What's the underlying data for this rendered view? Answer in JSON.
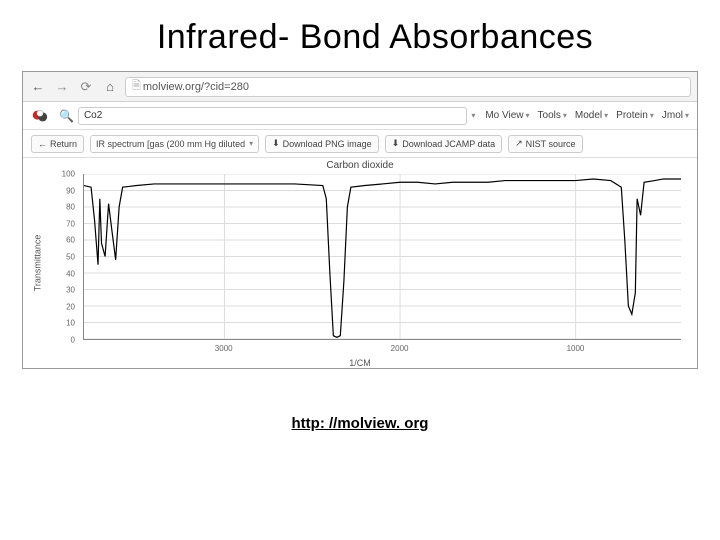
{
  "slide": {
    "title": "Infrared- Bond Absorbances"
  },
  "browser": {
    "url_scheme": "⎔",
    "url": "molview.org/?cid=280"
  },
  "app": {
    "search_value": "Co2",
    "menus": [
      {
        "label": "Mo View"
      },
      {
        "label": "Tools"
      },
      {
        "label": "Model"
      },
      {
        "label": "Protein"
      },
      {
        "label": "Jmol"
      }
    ]
  },
  "toolbar": {
    "return_label": "Return",
    "selector_label": "IR spectrum [gas (200 mm Hg diluted",
    "download_png_label": "Download PNG image",
    "download_jcamp_label": "Download JCAMP data",
    "nist_label": "NIST source"
  },
  "chart": {
    "type": "line",
    "title": "Carbon dioxide",
    "ylabel": "Transmittance",
    "xlabel": "1/CM",
    "ylim": [
      0,
      100
    ],
    "ytick_step": 10,
    "xlim": [
      3800,
      400
    ],
    "xticks": [
      3000,
      2000,
      1000
    ],
    "line_color": "#000000",
    "line_width": 1.2,
    "grid_color": "#dcdcdc",
    "background_color": "#ffffff",
    "label_fontsize": 9,
    "tick_fontsize": 8,
    "series": [
      {
        "x": 3800,
        "y": 93
      },
      {
        "x": 3760,
        "y": 92
      },
      {
        "x": 3740,
        "y": 72
      },
      {
        "x": 3720,
        "y": 45
      },
      {
        "x": 3710,
        "y": 85
      },
      {
        "x": 3700,
        "y": 58
      },
      {
        "x": 3680,
        "y": 50
      },
      {
        "x": 3660,
        "y": 82
      },
      {
        "x": 3640,
        "y": 65
      },
      {
        "x": 3620,
        "y": 48
      },
      {
        "x": 3600,
        "y": 80
      },
      {
        "x": 3580,
        "y": 92
      },
      {
        "x": 3500,
        "y": 93
      },
      {
        "x": 3400,
        "y": 94
      },
      {
        "x": 3200,
        "y": 94
      },
      {
        "x": 3000,
        "y": 94
      },
      {
        "x": 2800,
        "y": 94
      },
      {
        "x": 2600,
        "y": 94
      },
      {
        "x": 2440,
        "y": 93
      },
      {
        "x": 2420,
        "y": 85
      },
      {
        "x": 2400,
        "y": 40
      },
      {
        "x": 2380,
        "y": 2
      },
      {
        "x": 2360,
        "y": 1
      },
      {
        "x": 2340,
        "y": 2
      },
      {
        "x": 2320,
        "y": 35
      },
      {
        "x": 2300,
        "y": 80
      },
      {
        "x": 2280,
        "y": 92
      },
      {
        "x": 2200,
        "y": 93
      },
      {
        "x": 2100,
        "y": 94
      },
      {
        "x": 2000,
        "y": 95
      },
      {
        "x": 1900,
        "y": 95
      },
      {
        "x": 1800,
        "y": 94
      },
      {
        "x": 1700,
        "y": 95
      },
      {
        "x": 1600,
        "y": 95
      },
      {
        "x": 1500,
        "y": 95
      },
      {
        "x": 1400,
        "y": 96
      },
      {
        "x": 1300,
        "y": 96
      },
      {
        "x": 1200,
        "y": 96
      },
      {
        "x": 1100,
        "y": 96
      },
      {
        "x": 1000,
        "y": 96
      },
      {
        "x": 900,
        "y": 97
      },
      {
        "x": 800,
        "y": 96
      },
      {
        "x": 740,
        "y": 92
      },
      {
        "x": 720,
        "y": 60
      },
      {
        "x": 700,
        "y": 20
      },
      {
        "x": 680,
        "y": 15
      },
      {
        "x": 660,
        "y": 28
      },
      {
        "x": 650,
        "y": 85
      },
      {
        "x": 630,
        "y": 75
      },
      {
        "x": 610,
        "y": 95
      },
      {
        "x": 550,
        "y": 96
      },
      {
        "x": 500,
        "y": 97
      },
      {
        "x": 450,
        "y": 97
      },
      {
        "x": 400,
        "y": 97
      }
    ]
  },
  "footer": {
    "link": "http: //molview. org"
  }
}
